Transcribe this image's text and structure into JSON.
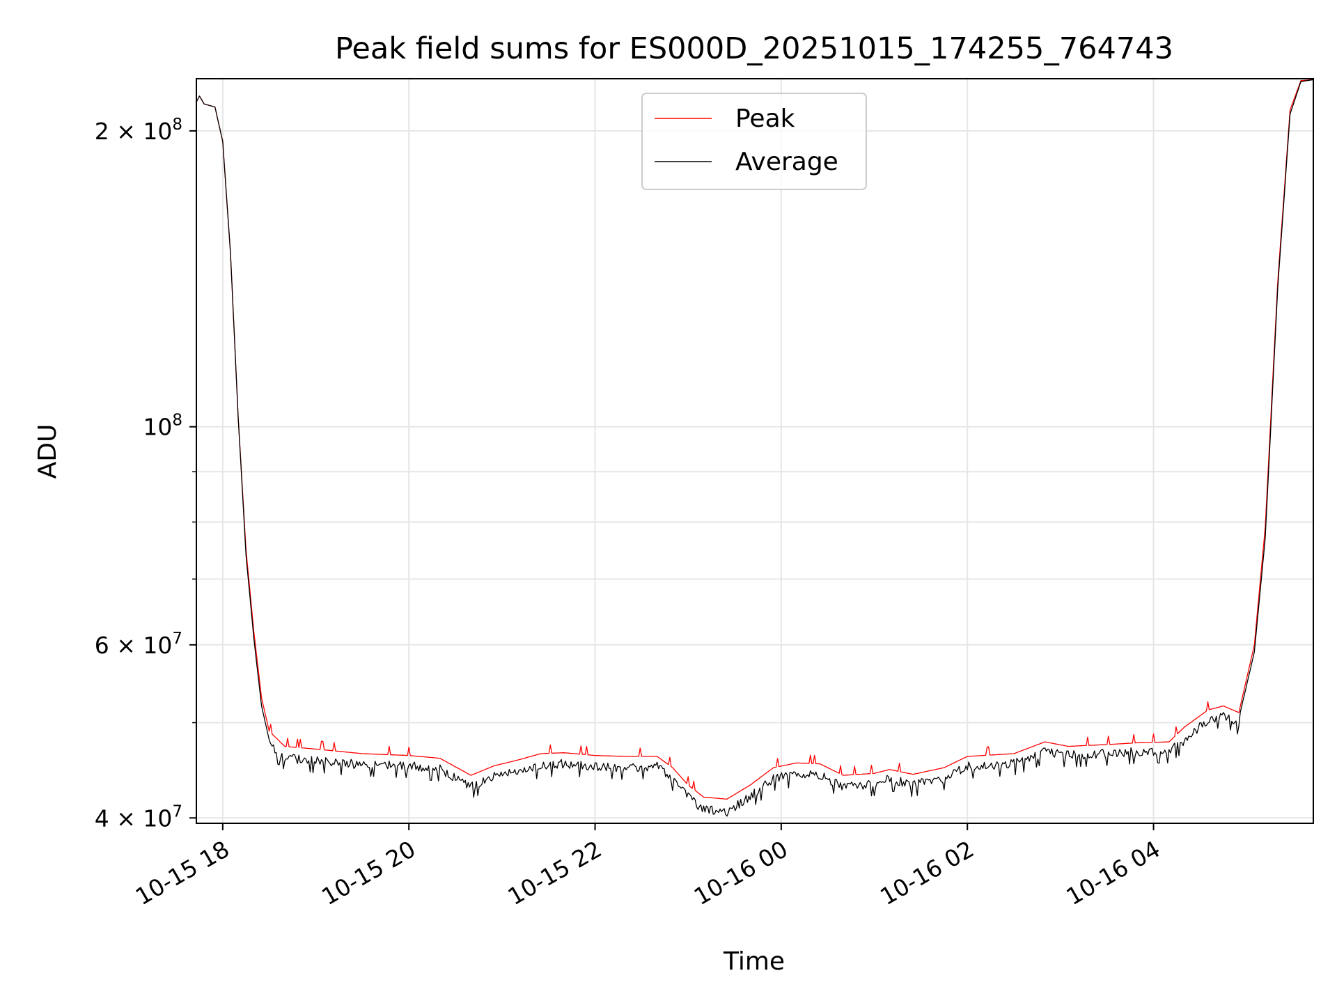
{
  "chart_data": {
    "type": "line",
    "title": "Peak field sums for ES000D_20251015_174255_764743",
    "xlabel": "Time",
    "ylabel": "ADU",
    "yscale": "log",
    "ylim": [
      39500000,
      226000000
    ],
    "xlim": [
      "2025-10-15 17:43",
      "2025-10-16 05:43"
    ],
    "grid": true,
    "legend": "upper center",
    "x_ticks": [
      {
        "value": "2025-10-15 18:00",
        "label": "10-15 18"
      },
      {
        "value": "2025-10-15 20:00",
        "label": "10-15 20"
      },
      {
        "value": "2025-10-15 22:00",
        "label": "10-15 22"
      },
      {
        "value": "2025-10-16 00:00",
        "label": "10-16 00"
      },
      {
        "value": "2025-10-16 02:00",
        "label": "10-16 02"
      },
      {
        "value": "2025-10-16 04:00",
        "label": "10-16 04"
      }
    ],
    "y_ticks": [
      {
        "value": 40000000,
        "mantissa": "4",
        "exponent": "7"
      },
      {
        "value": 60000000,
        "mantissa": "6",
        "exponent": "7"
      },
      {
        "value": 100000000,
        "mantissa": "",
        "exponent": "8"
      },
      {
        "value": 200000000,
        "mantissa": "2",
        "exponent": "8"
      }
    ],
    "y_minor_ticks": [
      50000000,
      70000000,
      80000000,
      90000000
    ],
    "series": [
      {
        "name": "Peak",
        "color": "#ff0000",
        "points": [
          [
            "2025-10-15 17:43",
            214000000
          ],
          [
            "2025-10-15 17:45",
            217000000
          ],
          [
            "2025-10-15 17:48",
            213000000
          ],
          [
            "2025-10-15 17:55",
            211500000
          ],
          [
            "2025-10-15 18:00",
            195000000
          ],
          [
            "2025-10-15 18:05",
            150000000
          ],
          [
            "2025-10-15 18:10",
            102000000
          ],
          [
            "2025-10-15 18:15",
            75000000
          ],
          [
            "2025-10-15 18:20",
            62000000
          ],
          [
            "2025-10-15 18:25",
            53000000
          ],
          [
            "2025-10-15 18:30",
            49000000
          ],
          [
            "2025-10-15 18:40",
            47300000
          ],
          [
            "2025-10-15 19:00",
            47000000
          ],
          [
            "2025-10-15 19:30",
            46500000
          ],
          [
            "2025-10-15 20:00",
            46300000
          ],
          [
            "2025-10-15 20:20",
            46000000
          ],
          [
            "2025-10-15 20:40",
            44200000
          ],
          [
            "2025-10-15 20:55",
            45200000
          ],
          [
            "2025-10-15 21:10",
            45800000
          ],
          [
            "2025-10-15 21:25",
            46500000
          ],
          [
            "2025-10-15 21:40",
            46600000
          ],
          [
            "2025-10-15 22:00",
            46300000
          ],
          [
            "2025-10-15 22:20",
            46200000
          ],
          [
            "2025-10-15 22:40",
            46200000
          ],
          [
            "2025-10-15 22:50",
            45000000
          ],
          [
            "2025-10-15 23:00",
            43200000
          ],
          [
            "2025-10-15 23:10",
            42000000
          ],
          [
            "2025-10-15 23:25",
            41800000
          ],
          [
            "2025-10-15 23:40",
            43200000
          ],
          [
            "2025-10-15 23:55",
            45000000
          ],
          [
            "2025-10-16 00:10",
            45500000
          ],
          [
            "2025-10-16 00:25",
            45400000
          ],
          [
            "2025-10-16 00:40",
            44200000
          ],
          [
            "2025-10-16 01:00",
            44400000
          ],
          [
            "2025-10-16 01:10",
            44800000
          ],
          [
            "2025-10-16 01:25",
            44300000
          ],
          [
            "2025-10-16 01:45",
            45000000
          ],
          [
            "2025-10-16 02:00",
            46200000
          ],
          [
            "2025-10-16 02:30",
            46500000
          ],
          [
            "2025-10-16 02:50",
            47800000
          ],
          [
            "2025-10-16 03:05",
            47300000
          ],
          [
            "2025-10-16 03:30",
            47500000
          ],
          [
            "2025-10-16 03:50",
            47700000
          ],
          [
            "2025-10-16 04:10",
            47800000
          ],
          [
            "2025-10-16 04:20",
            49500000
          ],
          [
            "2025-10-16 04:35",
            51500000
          ],
          [
            "2025-10-16 04:45",
            52000000
          ],
          [
            "2025-10-16 04:55",
            51200000
          ],
          [
            "2025-10-16 05:05",
            60000000
          ],
          [
            "2025-10-16 05:12",
            79000000
          ],
          [
            "2025-10-16 05:20",
            140000000
          ],
          [
            "2025-10-16 05:28",
            210000000
          ],
          [
            "2025-10-16 05:35",
            225000000
          ],
          [
            "2025-10-16 05:43",
            225500000
          ]
        ]
      },
      {
        "name": "Average",
        "color": "#000000",
        "points": [
          [
            "2025-10-15 17:43",
            214000000
          ],
          [
            "2025-10-15 17:45",
            217000000
          ],
          [
            "2025-10-15 17:48",
            213000000
          ],
          [
            "2025-10-15 17:55",
            211500000
          ],
          [
            "2025-10-15 18:00",
            195000000
          ],
          [
            "2025-10-15 18:05",
            150000000
          ],
          [
            "2025-10-15 18:10",
            102000000
          ],
          [
            "2025-10-15 18:15",
            74000000
          ],
          [
            "2025-10-15 18:20",
            61000000
          ],
          [
            "2025-10-15 18:25",
            52000000
          ],
          [
            "2025-10-15 18:30",
            48000000
          ],
          [
            "2025-10-15 18:40",
            46500000
          ],
          [
            "2025-10-15 19:00",
            46200000
          ],
          [
            "2025-10-15 19:30",
            45800000
          ],
          [
            "2025-10-15 20:00",
            45700000
          ],
          [
            "2025-10-15 20:20",
            45300000
          ],
          [
            "2025-10-15 20:40",
            43500000
          ],
          [
            "2025-10-15 20:55",
            44500000
          ],
          [
            "2025-10-15 21:10",
            45000000
          ],
          [
            "2025-10-15 21:25",
            45700000
          ],
          [
            "2025-10-15 21:40",
            45900000
          ],
          [
            "2025-10-15 22:00",
            45600000
          ],
          [
            "2025-10-15 22:20",
            45500000
          ],
          [
            "2025-10-15 22:40",
            45600000
          ],
          [
            "2025-10-15 22:50",
            44300000
          ],
          [
            "2025-10-15 23:00",
            42500000
          ],
          [
            "2025-10-15 23:10",
            41200000
          ],
          [
            "2025-10-15 23:25",
            41000000
          ],
          [
            "2025-10-15 23:40",
            42500000
          ],
          [
            "2025-10-15 23:55",
            44300000
          ],
          [
            "2025-10-16 00:10",
            44800000
          ],
          [
            "2025-10-16 00:25",
            44700000
          ],
          [
            "2025-10-16 00:40",
            43500000
          ],
          [
            "2025-10-16 01:00",
            43800000
          ],
          [
            "2025-10-16 01:10",
            44300000
          ],
          [
            "2025-10-16 01:25",
            43700000
          ],
          [
            "2025-10-16 01:45",
            44400000
          ],
          [
            "2025-10-16 02:00",
            45600000
          ],
          [
            "2025-10-16 02:30",
            45900000
          ],
          [
            "2025-10-16 02:50",
            47200000
          ],
          [
            "2025-10-16 03:05",
            46800000
          ],
          [
            "2025-10-16 03:30",
            47000000
          ],
          [
            "2025-10-16 03:50",
            47200000
          ],
          [
            "2025-10-16 04:10",
            47300000
          ],
          [
            "2025-10-16 04:20",
            48500000
          ],
          [
            "2025-10-16 04:35",
            50800000
          ],
          [
            "2025-10-16 04:45",
            51500000
          ],
          [
            "2025-10-16 04:55",
            50500000
          ],
          [
            "2025-10-16 05:05",
            59000000
          ],
          [
            "2025-10-16 05:12",
            77000000
          ],
          [
            "2025-10-16 05:20",
            138000000
          ],
          [
            "2025-10-16 05:28",
            208000000
          ],
          [
            "2025-10-16 05:35",
            224500000
          ],
          [
            "2025-10-16 05:43",
            225500000
          ]
        ]
      }
    ]
  }
}
